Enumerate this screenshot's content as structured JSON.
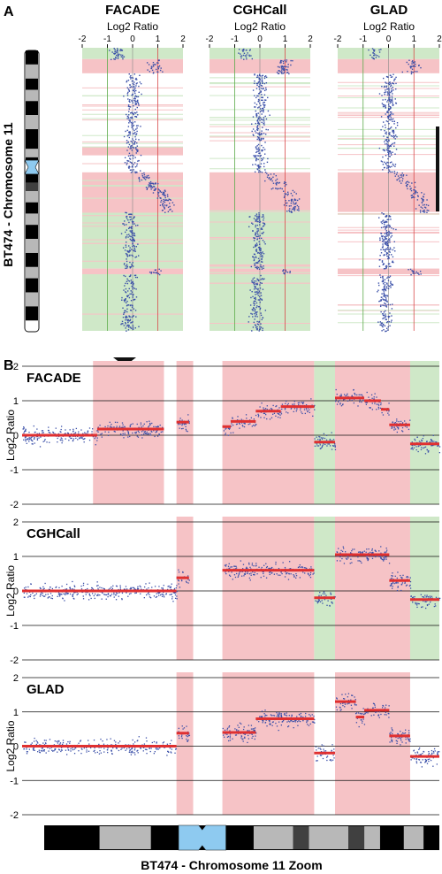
{
  "colors": {
    "gain": "#f6c3c6",
    "loss": "#cfe8c8",
    "segment": "#e03030",
    "points": "#3a4fa8",
    "smooth": "#111111",
    "centromere": "#8ecaf0",
    "band_dark": "#000000",
    "band_mid": "#b8b8b8",
    "band_dim": "#404040"
  },
  "panel_a": {
    "label": "A",
    "chromosome_label": "BT474 - Chromosome 11",
    "axis_label": "Log2 Ratio",
    "ticks": [
      "-2",
      "-1",
      "0",
      "1",
      "2"
    ],
    "methods": [
      "FACADE",
      "CGHCall",
      "GLAD"
    ]
  },
  "panel_b": {
    "label": "B",
    "axis_label": "Log2 Ratio",
    "yticks": [
      "2",
      "1",
      "0",
      "-1",
      "-2"
    ],
    "methods": [
      "FACADE",
      "CGHCall",
      "GLAD"
    ],
    "bottom_label": "BT474 - Chromosome 11 Zoom"
  },
  "chart_data": [
    {
      "type": "scatter",
      "panel": "A",
      "title": "FACADE",
      "xlabel": "Log2 Ratio",
      "xlim": [
        -2,
        2
      ],
      "orientation": "genomic position on vertical axis (top = p-arm)",
      "calls": [
        {
          "start": 0.0,
          "end": 0.04,
          "call": "loss"
        },
        {
          "start": 0.04,
          "end": 0.09,
          "call": "gain"
        },
        {
          "start": 0.35,
          "end": 0.38,
          "call": "gain"
        },
        {
          "start": 0.44,
          "end": 0.58,
          "call": "gain"
        },
        {
          "start": 0.58,
          "end": 0.78,
          "call": "loss"
        },
        {
          "start": 0.78,
          "end": 0.8,
          "call": "gain"
        },
        {
          "start": 0.8,
          "end": 1.0,
          "call": "loss"
        }
      ]
    },
    {
      "type": "scatter",
      "panel": "A",
      "title": "CGHCall",
      "xlabel": "Log2 Ratio",
      "xlim": [
        -2,
        2
      ],
      "calls": [
        {
          "start": 0.0,
          "end": 0.04,
          "call": "loss"
        },
        {
          "start": 0.04,
          "end": 0.09,
          "call": "gain"
        },
        {
          "start": 0.44,
          "end": 0.58,
          "call": "gain"
        },
        {
          "start": 0.58,
          "end": 0.78,
          "call": "loss"
        },
        {
          "start": 0.78,
          "end": 0.8,
          "call": "gain"
        },
        {
          "start": 0.8,
          "end": 1.0,
          "call": "loss"
        }
      ]
    },
    {
      "type": "scatter",
      "panel": "A",
      "title": "GLAD",
      "xlabel": "Log2 Ratio",
      "xlim": [
        -2,
        2
      ],
      "calls": [
        {
          "start": 0.0,
          "end": 0.04,
          "call": "loss"
        },
        {
          "start": 0.04,
          "end": 0.09,
          "call": "gain"
        },
        {
          "start": 0.44,
          "end": 0.58,
          "call": "gain"
        },
        {
          "start": 0.78,
          "end": 0.8,
          "call": "gain"
        }
      ]
    },
    {
      "type": "scatter",
      "panel": "B",
      "title": "FACADE",
      "ylabel": "Log2 Ratio",
      "ylim": [
        -2,
        2
      ],
      "xlim": [
        0,
        100
      ],
      "calls": [
        {
          "start": 17,
          "end": 34,
          "call": "gain"
        },
        {
          "start": 37,
          "end": 41,
          "call": "gain"
        },
        {
          "start": 48,
          "end": 70,
          "call": "gain"
        },
        {
          "start": 70,
          "end": 75,
          "call": "loss"
        },
        {
          "start": 75,
          "end": 93,
          "call": "gain"
        },
        {
          "start": 93,
          "end": 100,
          "call": "loss"
        }
      ],
      "segments": [
        {
          "start": 0,
          "end": 18,
          "value": 0.0
        },
        {
          "start": 18,
          "end": 34,
          "value": 0.18
        },
        {
          "start": 37,
          "end": 40,
          "value": 0.38
        },
        {
          "start": 48,
          "end": 50,
          "value": 0.25
        },
        {
          "start": 50,
          "end": 56,
          "value": 0.4
        },
        {
          "start": 56,
          "end": 62,
          "value": 0.7
        },
        {
          "start": 62,
          "end": 70,
          "value": 0.83
        },
        {
          "start": 70,
          "end": 75,
          "value": -0.2
        },
        {
          "start": 75,
          "end": 82,
          "value": 1.08
        },
        {
          "start": 82,
          "end": 86,
          "value": 1.0
        },
        {
          "start": 86,
          "end": 88,
          "value": 0.75
        },
        {
          "start": 88,
          "end": 93,
          "value": 0.3
        },
        {
          "start": 93,
          "end": 100,
          "value": -0.25
        }
      ]
    },
    {
      "type": "scatter",
      "panel": "B",
      "title": "CGHCall",
      "ylabel": "Log2 Ratio",
      "ylim": [
        -2,
        2
      ],
      "xlim": [
        0,
        100
      ],
      "calls": [
        {
          "start": 37,
          "end": 41,
          "call": "gain"
        },
        {
          "start": 48,
          "end": 70,
          "call": "gain"
        },
        {
          "start": 70,
          "end": 75,
          "call": "loss"
        },
        {
          "start": 75,
          "end": 93,
          "call": "gain"
        },
        {
          "start": 93,
          "end": 100,
          "call": "loss"
        }
      ],
      "segments": [
        {
          "start": 0,
          "end": 37,
          "value": 0.0
        },
        {
          "start": 37,
          "end": 40,
          "value": 0.38
        },
        {
          "start": 48,
          "end": 62,
          "value": 0.6
        },
        {
          "start": 62,
          "end": 70,
          "value": 0.6
        },
        {
          "start": 70,
          "end": 75,
          "value": -0.2
        },
        {
          "start": 75,
          "end": 88,
          "value": 1.05
        },
        {
          "start": 88,
          "end": 93,
          "value": 0.3
        },
        {
          "start": 93,
          "end": 100,
          "value": -0.25
        }
      ]
    },
    {
      "type": "scatter",
      "panel": "B",
      "title": "GLAD",
      "ylabel": "Log2 Ratio",
      "ylim": [
        -2,
        2
      ],
      "xlim": [
        0,
        100
      ],
      "calls": [
        {
          "start": 37,
          "end": 41,
          "call": "gain"
        },
        {
          "start": 48,
          "end": 70,
          "call": "gain"
        },
        {
          "start": 75,
          "end": 93,
          "call": "gain"
        }
      ],
      "segments": [
        {
          "start": 0,
          "end": 37,
          "value": 0.0
        },
        {
          "start": 37,
          "end": 40,
          "value": 0.38
        },
        {
          "start": 48,
          "end": 56,
          "value": 0.4
        },
        {
          "start": 56,
          "end": 70,
          "value": 0.8
        },
        {
          "start": 70,
          "end": 75,
          "value": -0.2
        },
        {
          "start": 75,
          "end": 80,
          "value": 1.3
        },
        {
          "start": 80,
          "end": 82,
          "value": 0.85
        },
        {
          "start": 82,
          "end": 88,
          "value": 1.05
        },
        {
          "start": 88,
          "end": 93,
          "value": 0.3
        },
        {
          "start": 93,
          "end": 100,
          "value": -0.3
        }
      ]
    }
  ]
}
